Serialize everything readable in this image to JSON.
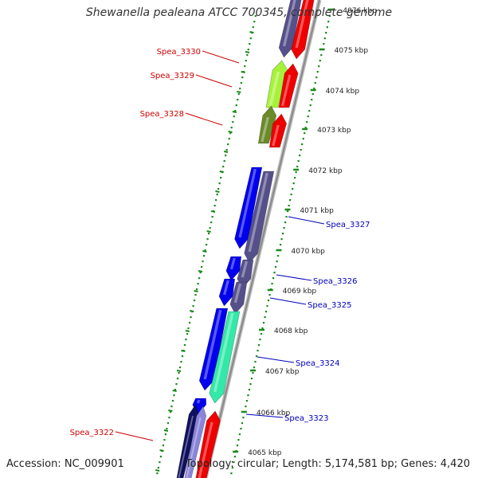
{
  "title": "Shewanella pealeana ATCC 700345, complete genome",
  "accession": "Accession: NC_009901",
  "topology": "Topology: circular; Length: 5,174,581 bp; Genes: 4,420",
  "colors": {
    "background": "#ffffff",
    "backbone": "#888888",
    "dots": "#1a8a1a",
    "forward_label": "#cc0000",
    "reverse_label": "#0000bb",
    "red": "#ee0000",
    "blue": "#0000ee",
    "purple": "#55508a",
    "lime": "#a6f23a",
    "olive": "#6b8a2a",
    "teal": "#33e8a8",
    "navy": "#101060",
    "lavender": "#8a85d8"
  },
  "ticks": [
    {
      "label": "4076 kbp"
    },
    {
      "label": "4075 kbp"
    },
    {
      "label": "4074 kbp"
    },
    {
      "label": "4073 kbp"
    },
    {
      "label": "4072 kbp"
    },
    {
      "label": "4071 kbp"
    },
    {
      "label": "4070 kbp"
    },
    {
      "label": "4069 kbp"
    },
    {
      "label": "4068 kbp"
    },
    {
      "label": "4067 kbp"
    },
    {
      "label": "4066 kbp"
    },
    {
      "label": "4065 kbp"
    }
  ],
  "gene_labels": [
    {
      "name": "Spea_3330",
      "strand": "forward"
    },
    {
      "name": "Spea_3329",
      "strand": "forward"
    },
    {
      "name": "Spea_3328",
      "strand": "forward"
    },
    {
      "name": "Spea_3327",
      "strand": "reverse"
    },
    {
      "name": "Spea_3326",
      "strand": "reverse"
    },
    {
      "name": "Spea_3325",
      "strand": "reverse"
    },
    {
      "name": "Spea_3324",
      "strand": "reverse"
    },
    {
      "name": "Spea_3323",
      "strand": "reverse"
    },
    {
      "name": "Spea_3322",
      "strand": "forward"
    }
  ]
}
